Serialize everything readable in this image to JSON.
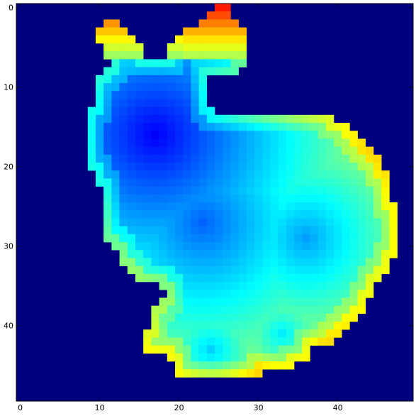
{
  "chart_data": {
    "type": "heatmap",
    "colormap": "jet",
    "grid": false,
    "xlim": [
      0,
      50
    ],
    "ylim": [
      50,
      0
    ],
    "xticks": [
      0,
      10,
      20,
      30,
      40
    ],
    "yticks": [
      0,
      10,
      20,
      30,
      40
    ],
    "xtick_labels": [
      "0",
      "10",
      "20",
      "30",
      "40"
    ],
    "ytick_labels": [
      "0",
      "10",
      "20",
      "30",
      "40"
    ],
    "background_color": "#00007f",
    "note_values": "normalized colormap values 0..1 (0 = dark blue, 1 = dark red)",
    "shape": {
      "rows": [
        {
          "y": 0,
          "spans": [
            [
              25,
              26
            ]
          ]
        },
        {
          "y": 1,
          "spans": [
            [
              24,
              26
            ]
          ]
        },
        {
          "y": 2,
          "spans": [
            [
              11,
              12
            ],
            [
              23,
              27
            ]
          ]
        },
        {
          "y": 3,
          "spans": [
            [
              10,
              13
            ],
            [
              21,
              28
            ]
          ]
        },
        {
          "y": 4,
          "spans": [
            [
              10,
              14
            ],
            [
              20,
              28
            ]
          ]
        },
        {
          "y": 5,
          "spans": [
            [
              11,
              15
            ],
            [
              19,
              28
            ]
          ]
        },
        {
          "y": 6,
          "spans": [
            [
              11,
              15
            ],
            [
              19,
              28
            ]
          ]
        },
        {
          "y": 7,
          "spans": [
            [
              12,
              22
            ],
            [
              23,
              28
            ]
          ]
        },
        {
          "y": 8,
          "spans": [
            [
              11,
              23
            ],
            [
              24,
              27
            ]
          ]
        },
        {
          "y": 9,
          "spans": [
            [
              10,
              23
            ]
          ]
        },
        {
          "y": 10,
          "spans": [
            [
              10,
              23
            ]
          ]
        },
        {
          "y": 11,
          "spans": [
            [
              10,
              23
            ]
          ]
        },
        {
          "y": 12,
          "spans": [
            [
              10,
              23
            ]
          ]
        },
        {
          "y": 13,
          "spans": [
            [
              9,
              24
            ]
          ]
        },
        {
          "y": 14,
          "spans": [
            [
              9,
              39
            ]
          ]
        },
        {
          "y": 15,
          "spans": [
            [
              9,
              41
            ]
          ]
        },
        {
          "y": 16,
          "spans": [
            [
              9,
              42
            ]
          ]
        },
        {
          "y": 17,
          "spans": [
            [
              9,
              43
            ]
          ]
        },
        {
          "y": 18,
          "spans": [
            [
              9,
              44
            ]
          ]
        },
        {
          "y": 19,
          "spans": [
            [
              9,
              45
            ]
          ]
        },
        {
          "y": 20,
          "spans": [
            [
              9,
              45
            ]
          ]
        },
        {
          "y": 21,
          "spans": [
            [
              10,
              46
            ]
          ]
        },
        {
          "y": 22,
          "spans": [
            [
              10,
              46
            ]
          ]
        },
        {
          "y": 23,
          "spans": [
            [
              11,
              46
            ]
          ]
        },
        {
          "y": 24,
          "spans": [
            [
              11,
              46
            ]
          ]
        },
        {
          "y": 25,
          "spans": [
            [
              11,
              47
            ]
          ]
        },
        {
          "y": 26,
          "spans": [
            [
              11,
              47
            ]
          ]
        },
        {
          "y": 27,
          "spans": [
            [
              11,
              47
            ]
          ]
        },
        {
          "y": 28,
          "spans": [
            [
              11,
              47
            ]
          ]
        },
        {
          "y": 29,
          "spans": [
            [
              11,
              47
            ]
          ]
        },
        {
          "y": 30,
          "spans": [
            [
              12,
              47
            ]
          ]
        },
        {
          "y": 31,
          "spans": [
            [
              13,
              47
            ]
          ]
        },
        {
          "y": 32,
          "spans": [
            [
              13,
              46
            ]
          ]
        },
        {
          "y": 33,
          "spans": [
            [
              14,
              46
            ]
          ]
        },
        {
          "y": 34,
          "spans": [
            [
              15,
              45
            ]
          ]
        },
        {
          "y": 35,
          "spans": [
            [
              18,
              44
            ]
          ]
        },
        {
          "y": 36,
          "spans": [
            [
              19,
              44
            ]
          ]
        },
        {
          "y": 37,
          "spans": [
            [
              18,
              43
            ]
          ]
        },
        {
          "y": 38,
          "spans": [
            [
              17,
              43
            ]
          ]
        },
        {
          "y": 39,
          "spans": [
            [
              17,
              42
            ]
          ]
        },
        {
          "y": 40,
          "spans": [
            [
              17,
              41
            ]
          ]
        },
        {
          "y": 41,
          "spans": [
            [
              16,
              40
            ]
          ]
        },
        {
          "y": 42,
          "spans": [
            [
              16,
              39
            ]
          ]
        },
        {
          "y": 43,
          "spans": [
            [
              16,
              36
            ]
          ]
        },
        {
          "y": 44,
          "spans": [
            [
              19,
              36
            ]
          ]
        },
        {
          "y": 45,
          "spans": [
            [
              20,
              34
            ]
          ]
        },
        {
          "y": 46,
          "spans": [
            [
              20,
              30
            ]
          ]
        }
      ]
    },
    "hotspots": [
      {
        "x": 17,
        "y": 16,
        "value": 0.12,
        "radius": 6
      },
      {
        "x": 23,
        "y": 27,
        "value": 0.22,
        "radius": 6
      },
      {
        "x": 36,
        "y": 29,
        "value": 0.28,
        "radius": 5
      },
      {
        "x": 24,
        "y": 43,
        "value": 0.33,
        "radius": 3
      },
      {
        "x": 33,
        "y": 41,
        "value": 0.36,
        "radius": 3
      }
    ]
  }
}
